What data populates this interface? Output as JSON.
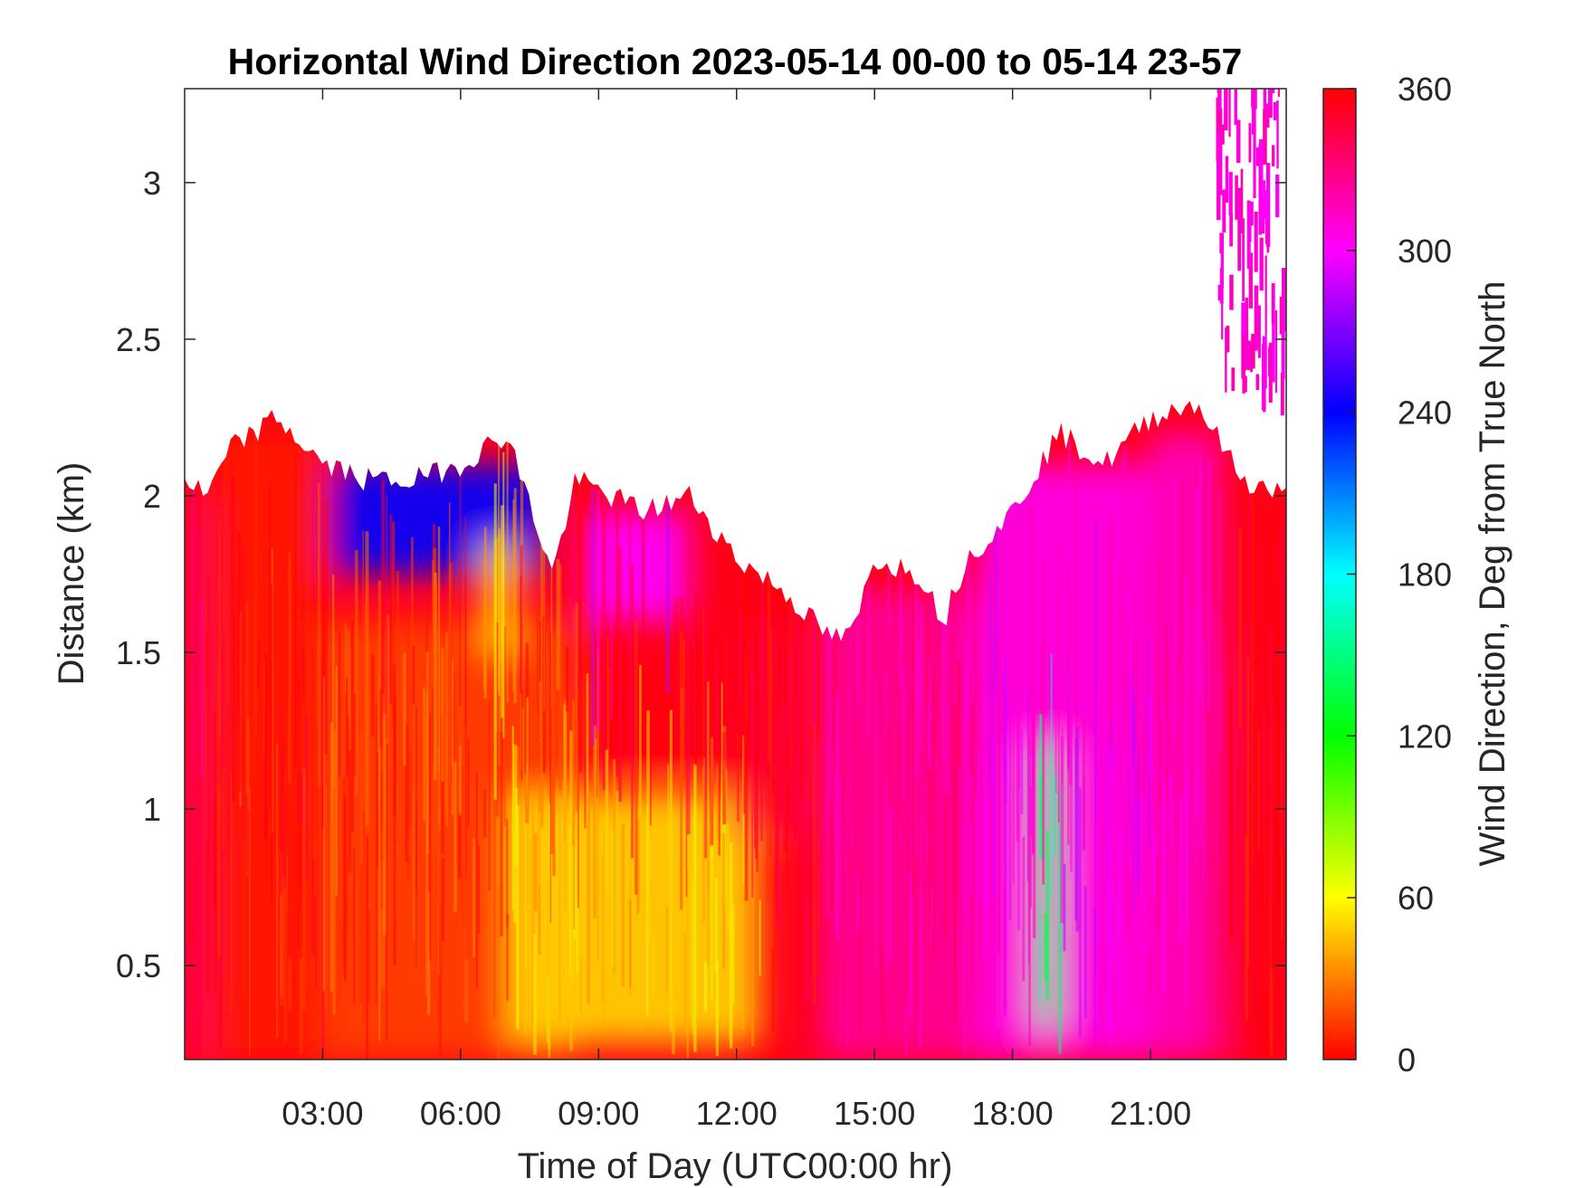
{
  "chart_data": {
    "type": "heatmap",
    "title": "Horizontal Wind Direction 2023-05-14 00-00 to 05-14 23-57",
    "xlabel": "Time of Day (UTC00:00 hr)",
    "ylabel": "Distance (km)",
    "colorbar_label": "Wind Direction, Deg from True North",
    "x_unit": "hour",
    "xlim": [
      0,
      23.95
    ],
    "ylim": [
      0.2,
      3.3
    ],
    "x_ticks": [
      {
        "value": 3,
        "label": "03:00"
      },
      {
        "value": 6,
        "label": "06:00"
      },
      {
        "value": 9,
        "label": "09:00"
      },
      {
        "value": 12,
        "label": "12:00"
      },
      {
        "value": 15,
        "label": "15:00"
      },
      {
        "value": 18,
        "label": "18:00"
      },
      {
        "value": 21,
        "label": "21:00"
      }
    ],
    "y_ticks": [
      {
        "value": 0.5,
        "label": "0.5"
      },
      {
        "value": 1,
        "label": "1"
      },
      {
        "value": 1.5,
        "label": "1.5"
      },
      {
        "value": 2,
        "label": "2"
      },
      {
        "value": 2.5,
        "label": "2.5"
      },
      {
        "value": 3,
        "label": "3"
      }
    ],
    "colorbar": {
      "range": [
        0,
        360
      ],
      "ticks": [
        {
          "value": 0,
          "label": "0"
        },
        {
          "value": 60,
          "label": "60"
        },
        {
          "value": 120,
          "label": "120"
        },
        {
          "value": 180,
          "label": "180"
        },
        {
          "value": 240,
          "label": "240"
        },
        {
          "value": 300,
          "label": "300"
        },
        {
          "value": 360,
          "label": "360"
        }
      ],
      "stops": [
        {
          "value": 0,
          "color": "#ff0000"
        },
        {
          "value": 60,
          "color": "#ffff00"
        },
        {
          "value": 120,
          "color": "#00ff00"
        },
        {
          "value": 180,
          "color": "#00ffff"
        },
        {
          "value": 240,
          "color": "#0000ff"
        },
        {
          "value": 300,
          "color": "#ff00ff"
        },
        {
          "value": 360,
          "color": "#ff0000"
        }
      ]
    },
    "grid": false,
    "data_top_profile": [
      [
        0,
        2.05
      ],
      [
        0.5,
        2.0
      ],
      [
        1,
        2.15
      ],
      [
        2,
        2.25
      ],
      [
        3,
        2.1
      ],
      [
        4,
        2.05
      ],
      [
        5,
        2.05
      ],
      [
        6,
        2.1
      ],
      [
        7,
        2.2
      ],
      [
        8,
        1.75
      ],
      [
        8.5,
        2.05
      ],
      [
        10,
        1.95
      ],
      [
        11,
        2.0
      ],
      [
        12,
        1.8
      ],
      [
        13,
        1.7
      ],
      [
        14,
        1.55
      ],
      [
        14.5,
        1.55
      ],
      [
        15,
        1.8
      ],
      [
        16,
        1.75
      ],
      [
        16.5,
        1.6
      ],
      [
        17,
        1.8
      ],
      [
        18,
        1.95
      ],
      [
        19,
        2.2
      ],
      [
        20,
        2.1
      ],
      [
        21,
        2.25
      ],
      [
        22,
        2.3
      ],
      [
        23,
        2.05
      ],
      [
        23.95,
        2.0
      ]
    ],
    "upper_plume": {
      "x_range": [
        22.4,
        23.95
      ],
      "y_range": [
        2.25,
        3.3
      ],
      "value": 310
    },
    "regions": [
      {
        "x": [
          0,
          0.6
        ],
        "y": [
          0.2,
          2.0
        ],
        "value": 340
      },
      {
        "x": [
          0.6,
          3
        ],
        "y": [
          0.2,
          2.2
        ],
        "value": 5
      },
      {
        "x": [
          3,
          8.5
        ],
        "y": [
          0.2,
          1.6
        ],
        "value": 15
      },
      {
        "x": [
          3.2,
          7.8
        ],
        "y": [
          1.75,
          2.1
        ],
        "value": 240
      },
      {
        "x": [
          6.5,
          7.2
        ],
        "y": [
          1.5,
          1.85
        ],
        "value": 50
      },
      {
        "x": [
          7,
          12.5
        ],
        "y": [
          0.25,
          1.05
        ],
        "value": 50
      },
      {
        "x": [
          8.5,
          12.5
        ],
        "y": [
          1.1,
          1.4
        ],
        "value": 358
      },
      {
        "x": [
          8.7,
          11
        ],
        "y": [
          1.6,
          1.95
        ],
        "value": 300
      },
      {
        "x": [
          12,
          14
        ],
        "y": [
          0.9,
          1.6
        ],
        "value": 350
      },
      {
        "x": [
          13.8,
          17.2
        ],
        "y": [
          0.2,
          1.7
        ],
        "value": 325
      },
      {
        "x": [
          17.2,
          21
        ],
        "y": [
          0.2,
          2.1
        ],
        "value": 305
      },
      {
        "x": [
          18.5,
          19
        ],
        "y": [
          0.3,
          1.2
        ],
        "value": 150
      },
      {
        "x": [
          21,
          22.5
        ],
        "y": [
          0.2,
          2.2
        ],
        "value": 315
      },
      {
        "x": [
          22.8,
          23.95
        ],
        "y": [
          0.2,
          1.5
        ],
        "value": 355
      }
    ]
  }
}
